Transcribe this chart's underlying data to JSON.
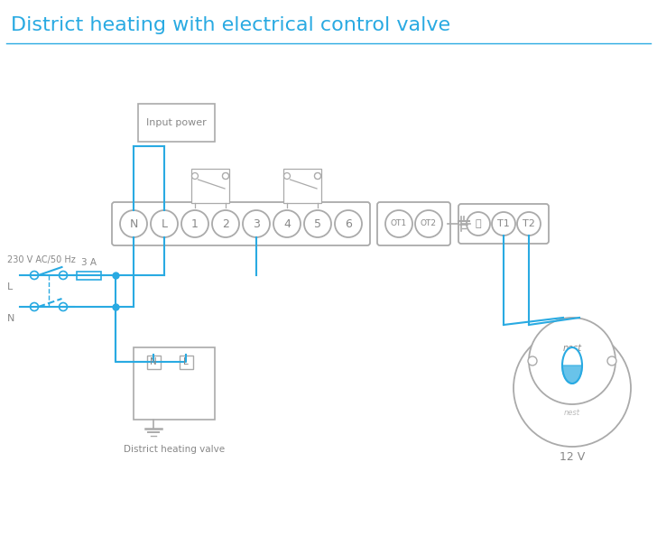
{
  "title": "District heating with electrical control valve",
  "title_color": "#29aae2",
  "title_fontsize": 16,
  "line_color": "#29aae2",
  "border_color": "#aaaaaa",
  "text_color": "#888888",
  "bg_color": "#ffffff",
  "terminal_labels": [
    "N",
    "L",
    "1",
    "2",
    "3",
    "4",
    "5",
    "6"
  ],
  "ot_labels": [
    "OT1",
    "OT2"
  ],
  "t_labels": [
    "⏚",
    "T1",
    "T2"
  ],
  "voltage_label": "230 V AC/50 Hz",
  "fuse_label": "3 A",
  "L_label": "L",
  "N_label": "N",
  "valve_label": "District heating valve",
  "nest_label": "12 V",
  "input_power_label": "Input power"
}
